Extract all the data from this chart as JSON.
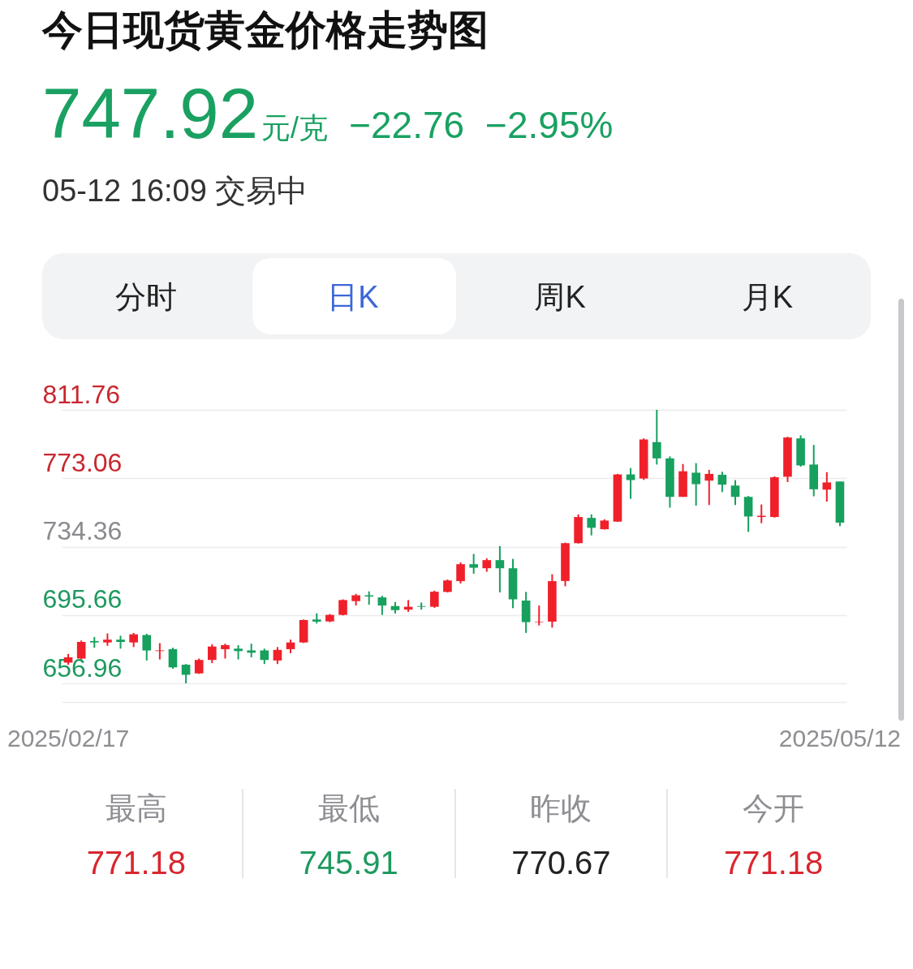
{
  "chart_data": {
    "type": "candlestick",
    "title": "今日现货黄金价格走势图",
    "annotations": [
      "747.92",
      "元/克",
      "−22.76",
      "−2.95%",
      "05-12 16:09 交易中",
      "分时",
      "日K",
      "周K",
      "月K",
      "最高",
      "771.18",
      "最低",
      "745.91",
      "昨收",
      "770.67",
      "今开",
      "771.18"
    ],
    "categories": [
      "2025/02/17",
      null,
      null,
      null,
      null,
      null,
      null,
      null,
      null,
      null,
      null,
      null,
      null,
      null,
      null,
      null,
      null,
      null,
      null,
      null,
      null,
      null,
      null,
      null,
      null,
      null,
      null,
      null,
      null,
      null,
      null,
      null,
      null,
      null,
      null,
      null,
      null,
      null,
      null,
      null,
      null,
      null,
      null,
      null,
      null,
      null,
      null,
      null,
      null,
      null,
      null,
      null,
      null,
      null,
      null,
      null,
      null,
      null,
      null,
      "2025/05/12"
    ],
    "ohlc": [
      [
        668.7,
        673.6,
        667.5,
        671.7
      ],
      [
        671.0,
        681.2,
        670.5,
        680.4
      ],
      [
        680.9,
        683.2,
        677.1,
        680.1
      ],
      [
        680.1,
        685.2,
        678.2,
        681.7
      ],
      [
        681.7,
        683.9,
        676.6,
        680.4
      ],
      [
        680.1,
        685.5,
        677.5,
        684.7
      ],
      [
        684.3,
        685.0,
        669.9,
        675.6
      ],
      [
        675.2,
        679.7,
        670.5,
        675.6
      ],
      [
        676.3,
        677.1,
        665.2,
        666.0
      ],
      [
        667.5,
        667.9,
        656.96,
        661.8
      ],
      [
        662.6,
        671.0,
        662.3,
        670.2
      ],
      [
        670.2,
        679.1,
        668.4,
        677.8
      ],
      [
        676.3,
        679.4,
        671.0,
        678.6
      ],
      [
        676.6,
        678.6,
        670.5,
        675.2
      ],
      [
        675.6,
        679.4,
        671.7,
        674.3
      ],
      [
        675.6,
        676.6,
        667.9,
        670.2
      ],
      [
        669.9,
        677.5,
        667.9,
        675.9
      ],
      [
        676.3,
        681.7,
        674.0,
        680.1
      ],
      [
        680.1,
        693.1,
        679.8,
        692.8
      ],
      [
        693.1,
        696.6,
        690.8,
        691.9
      ],
      [
        692.0,
        696.2,
        691.6,
        695.7
      ],
      [
        695.7,
        704.5,
        695.4,
        704.1
      ],
      [
        703.5,
        707.6,
        701.0,
        706.8
      ],
      [
        706.8,
        709.0,
        701.5,
        706.1
      ],
      [
        705.6,
        706.5,
        695.7,
        701.0
      ],
      [
        700.7,
        703.0,
        696.5,
        698.4
      ],
      [
        698.7,
        704.1,
        697.4,
        700.3
      ],
      [
        700.7,
        702.7,
        698.7,
        700.3
      ],
      [
        700.3,
        709.4,
        699.7,
        708.8
      ],
      [
        708.7,
        715.7,
        708.4,
        715.2
      ],
      [
        714.8,
        725.4,
        713.5,
        724.4
      ],
      [
        724.4,
        730.2,
        719.0,
        722.4
      ],
      [
        722.1,
        727.7,
        720.1,
        726.7
      ],
      [
        726.7,
        734.6,
        708.4,
        722.1
      ],
      [
        722.1,
        727.4,
        699.5,
        704.5
      ],
      [
        703.8,
        708.7,
        685.5,
        691.6
      ],
      [
        691.6,
        701.0,
        689.7,
        691.9
      ],
      [
        691.9,
        718.7,
        688.5,
        714.8
      ],
      [
        714.9,
        736.6,
        711.9,
        736.3
      ],
      [
        736.3,
        752.6,
        736.1,
        751.1
      ],
      [
        750.6,
        752.6,
        740.7,
        745.0
      ],
      [
        744.2,
        749.8,
        744.0,
        749.1
      ],
      [
        748.5,
        775.5,
        748.3,
        775.2
      ],
      [
        775.2,
        778.8,
        761.4,
        772.0
      ],
      [
        772.9,
        795.6,
        772.1,
        795.0
      ],
      [
        793.5,
        811.76,
        780.8,
        784.3
      ],
      [
        784.3,
        785.4,
        756.4,
        762.5
      ],
      [
        762.5,
        781.1,
        762.5,
        777.0
      ],
      [
        776.2,
        781.6,
        757.5,
        769.7
      ],
      [
        771.7,
        777.8,
        757.9,
        775.5
      ],
      [
        775.0,
        776.7,
        765.2,
        769.4
      ],
      [
        768.9,
        772.0,
        757.9,
        762.5
      ],
      [
        762.5,
        763.0,
        742.7,
        751.4
      ],
      [
        751.1,
        758.2,
        747.6,
        751.8
      ],
      [
        751.1,
        774.1,
        750.8,
        773.6
      ],
      [
        773.9,
        796.5,
        770.9,
        796.1
      ],
      [
        795.6,
        797.3,
        779.6,
        780.3
      ],
      [
        780.8,
        791.9,
        762.8,
        766.8
      ],
      [
        766.6,
        776.5,
        759.8,
        770.67
      ],
      [
        771.18,
        771.18,
        745.91,
        747.92
      ]
    ],
    "colors": [
      "#f0202a",
      "#f0202a",
      "#17a05e",
      "#f0202a",
      "#17a05e",
      "#f0202a",
      "#17a05e",
      "#f0202a",
      "#17a05e",
      "#17a05e",
      "#f0202a",
      "#f0202a",
      "#f0202a",
      "#17a05e",
      "#17a05e",
      "#17a05e",
      "#f0202a",
      "#f0202a",
      "#f0202a",
      "#17a05e",
      "#f0202a",
      "#f0202a",
      "#f0202a",
      "#17a05e",
      "#17a05e",
      "#17a05e",
      "#f0202a",
      "#17a05e",
      "#f0202a",
      "#f0202a",
      "#f0202a",
      "#17a05e",
      "#f0202a",
      "#17a05e",
      "#17a05e",
      "#17a05e",
      "#f0202a",
      "#f0202a",
      "#f0202a",
      "#f0202a",
      "#17a05e",
      "#f0202a",
      "#f0202a",
      "#17a05e",
      "#f0202a",
      "#17a05e",
      "#17a05e",
      "#f0202a",
      "#17a05e",
      "#f0202a",
      "#17a05e",
      "#17a05e",
      "#17a05e",
      "#f0202a",
      "#f0202a",
      "#f0202a",
      "#17a05e",
      "#17a05e",
      "#f0202a",
      "#17a05e"
    ],
    "ylim": [
      646.4,
      811.76
    ],
    "yticks": [
      656.96,
      695.66,
      734.36,
      773.06,
      811.76
    ],
    "grid": "y"
  }
}
